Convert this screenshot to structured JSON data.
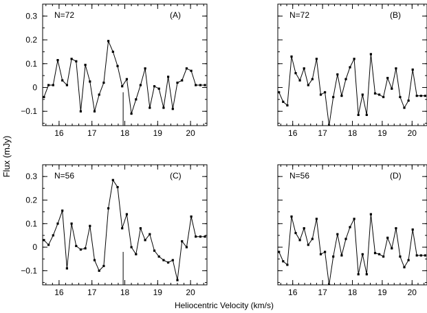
{
  "figure": {
    "xlabel": "Heliocentric Velocity (km/s)",
    "ylabel": "Flux  (mJy)"
  },
  "chart_data": [
    {
      "type": "line",
      "panel_label": "(A)",
      "n_label": "N=72",
      "xlim": [
        15.5,
        20.5
      ],
      "ylim": [
        -0.16,
        0.35
      ],
      "xticks": [
        16,
        17,
        18,
        19,
        20
      ],
      "yticks": [
        0.3,
        0.2,
        0.1,
        0,
        -0.1
      ],
      "ytick_labels": [
        "0.3",
        "0.2",
        "0.1",
        "0",
        "−0.1"
      ],
      "marker_x": 17.95,
      "marker_y": [
        -0.16,
        -0.02
      ],
      "x": [
        15.54,
        15.68,
        15.82,
        15.96,
        16.1,
        16.24,
        16.38,
        16.52,
        16.66,
        16.8,
        16.94,
        17.08,
        17.22,
        17.36,
        17.5,
        17.64,
        17.78,
        17.92,
        18.06,
        18.2,
        18.34,
        18.48,
        18.62,
        18.76,
        18.9,
        19.04,
        19.18,
        19.32,
        19.46,
        19.6,
        19.74,
        19.88,
        20.02,
        20.16,
        20.3,
        20.44
      ],
      "y": [
        -0.04,
        0.01,
        0.01,
        0.115,
        0.03,
        0.01,
        0.12,
        0.11,
        -0.1,
        0.095,
        0.025,
        -0.1,
        -0.03,
        0.02,
        0.195,
        0.15,
        0.09,
        0.005,
        0.035,
        -0.11,
        -0.05,
        0.01,
        0.08,
        -0.085,
        0.005,
        -0.005,
        -0.085,
        0.045,
        -0.09,
        0.02,
        0.03,
        0.08,
        0.07,
        0.01,
        0.01,
        0.01
      ]
    },
    {
      "type": "line",
      "panel_label": "(B)",
      "n_label": "N=72",
      "xlim": [
        15.5,
        20.5
      ],
      "ylim": [
        -0.16,
        0.35
      ],
      "xticks": [
        16,
        17,
        18,
        19,
        20
      ],
      "yticks": [
        0.3,
        0.2,
        0.1,
        0,
        -0.1
      ],
      "ytick_labels": [
        "",
        "",
        "",
        "",
        ""
      ],
      "marker_x": null,
      "marker_y": null,
      "x": [
        15.54,
        15.68,
        15.82,
        15.96,
        16.1,
        16.24,
        16.38,
        16.52,
        16.66,
        16.8,
        16.94,
        17.08,
        17.22,
        17.36,
        17.5,
        17.64,
        17.78,
        17.92,
        18.06,
        18.2,
        18.34,
        18.48,
        18.62,
        18.76,
        18.9,
        19.04,
        19.18,
        19.32,
        19.46,
        19.6,
        19.74,
        19.88,
        20.02,
        20.16,
        20.3,
        20.44
      ],
      "y": [
        -0.02,
        -0.06,
        -0.075,
        0.13,
        0.06,
        0.03,
        0.08,
        0.01,
        0.035,
        0.12,
        -0.03,
        -0.02,
        -0.16,
        -0.04,
        0.055,
        -0.035,
        0.035,
        0.085,
        0.12,
        -0.115,
        -0.03,
        -0.115,
        0.14,
        -0.025,
        -0.03,
        -0.04,
        0.04,
        -0.005,
        0.08,
        -0.04,
        -0.085,
        -0.055,
        0.075,
        -0.035,
        -0.035,
        -0.035
      ]
    },
    {
      "type": "line",
      "panel_label": "(C)",
      "n_label": "N=56",
      "xlim": [
        15.5,
        20.5
      ],
      "ylim": [
        -0.16,
        0.35
      ],
      "xticks": [
        16,
        17,
        18,
        19,
        20
      ],
      "yticks": [
        0.3,
        0.2,
        0.1,
        0,
        -0.1
      ],
      "ytick_labels": [
        "0.3",
        "0.2",
        "0.1",
        "0",
        "−0.1"
      ],
      "marker_x": 17.95,
      "marker_y": [
        -0.16,
        -0.02
      ],
      "x": [
        15.54,
        15.68,
        15.82,
        15.96,
        16.1,
        16.24,
        16.38,
        16.52,
        16.66,
        16.8,
        16.94,
        17.08,
        17.22,
        17.36,
        17.5,
        17.64,
        17.78,
        17.92,
        18.06,
        18.2,
        18.34,
        18.48,
        18.62,
        18.76,
        18.9,
        19.04,
        19.18,
        19.32,
        19.46,
        19.6,
        19.74,
        19.88,
        20.02,
        20.16,
        20.3,
        20.44
      ],
      "y": [
        0.03,
        0.01,
        0.05,
        0.1,
        0.155,
        -0.09,
        0.1,
        0.005,
        -0.01,
        -0.005,
        0.09,
        -0.055,
        -0.1,
        -0.08,
        0.165,
        0.285,
        0.255,
        0.08,
        0.14,
        0.0,
        -0.03,
        0.08,
        0.03,
        0.055,
        -0.015,
        -0.04,
        -0.055,
        -0.065,
        -0.055,
        -0.14,
        0.025,
        0.0,
        0.13,
        0.045,
        0.045,
        0.045
      ]
    },
    {
      "type": "line",
      "panel_label": "(D)",
      "n_label": "N=56",
      "xlim": [
        15.5,
        20.5
      ],
      "ylim": [
        -0.16,
        0.35
      ],
      "xticks": [
        16,
        17,
        18,
        19,
        20
      ],
      "yticks": [
        0.3,
        0.2,
        0.1,
        0,
        -0.1
      ],
      "ytick_labels": [
        "",
        "",
        "",
        "",
        ""
      ],
      "marker_x": null,
      "marker_y": null,
      "x": [
        15.54,
        15.68,
        15.82,
        15.96,
        16.1,
        16.24,
        16.38,
        16.52,
        16.66,
        16.8,
        16.94,
        17.08,
        17.22,
        17.36,
        17.5,
        17.64,
        17.78,
        17.92,
        18.06,
        18.2,
        18.34,
        18.48,
        18.62,
        18.76,
        18.9,
        19.04,
        19.18,
        19.32,
        19.46,
        19.6,
        19.74,
        19.88,
        20.02,
        20.16,
        20.3,
        20.44
      ],
      "y": [
        -0.02,
        -0.06,
        -0.075,
        0.13,
        0.06,
        0.03,
        0.08,
        0.01,
        0.035,
        0.12,
        -0.03,
        -0.02,
        -0.16,
        -0.04,
        0.055,
        -0.035,
        0.035,
        0.085,
        0.12,
        -0.115,
        -0.03,
        -0.115,
        0.14,
        -0.025,
        -0.03,
        -0.04,
        0.04,
        -0.005,
        0.08,
        -0.04,
        -0.085,
        -0.055,
        0.075,
        -0.035,
        -0.035,
        -0.035
      ]
    }
  ]
}
